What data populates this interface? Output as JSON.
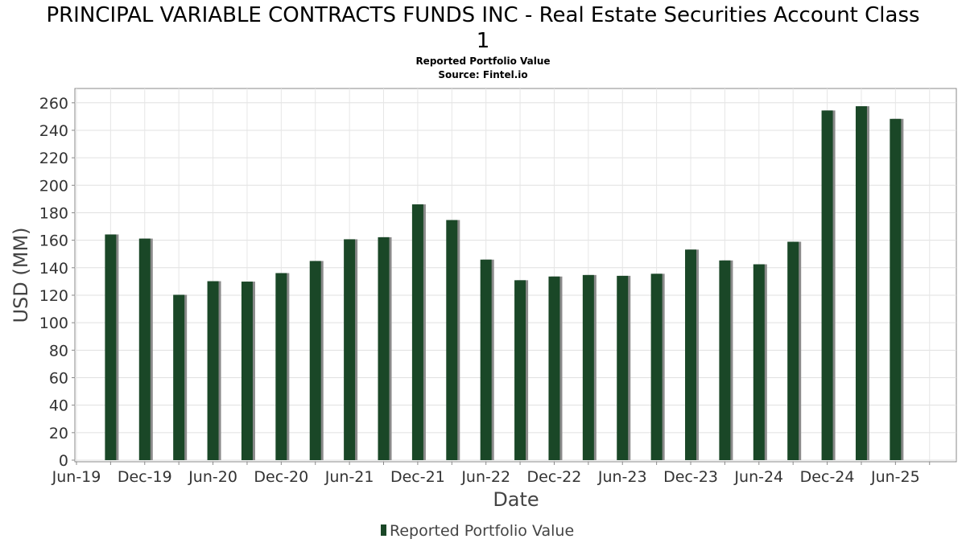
{
  "chart_data": {
    "type": "bar",
    "title_line1": "PRINCIPAL VARIABLE CONTRACTS FUNDS INC - Real Estate Securities Account Class",
    "title_line2": "1",
    "subtitle": "Reported Portfolio Value",
    "source": "Source: Fintel.io",
    "xlabel": "Date",
    "ylabel": "USD (MM)",
    "ylim": [
      0,
      270
    ],
    "yticks": [
      0,
      20,
      40,
      60,
      80,
      100,
      120,
      140,
      160,
      180,
      200,
      220,
      240,
      260
    ],
    "xticks": [
      "Jun-19",
      "Dec-19",
      "Jun-20",
      "Dec-20",
      "Jun-21",
      "Dec-21",
      "Jun-22",
      "Dec-22",
      "Jun-23",
      "Dec-23",
      "Jun-24",
      "Dec-24",
      "Jun-25"
    ],
    "grid": true,
    "legend": "bottom",
    "series": [
      {
        "name": "Reported Portfolio Value",
        "color": "#1a4727",
        "values": [
          164.2,
          161.2,
          120.3,
          130.2,
          129.9,
          136.1,
          144.9,
          160.7,
          162.2,
          186.1,
          174.7,
          145.9,
          130.9,
          133.6,
          134.7,
          134.1,
          135.6,
          153.2,
          145.3,
          142.5,
          158.9,
          254.4,
          257.5,
          248.3
        ]
      }
    ]
  }
}
